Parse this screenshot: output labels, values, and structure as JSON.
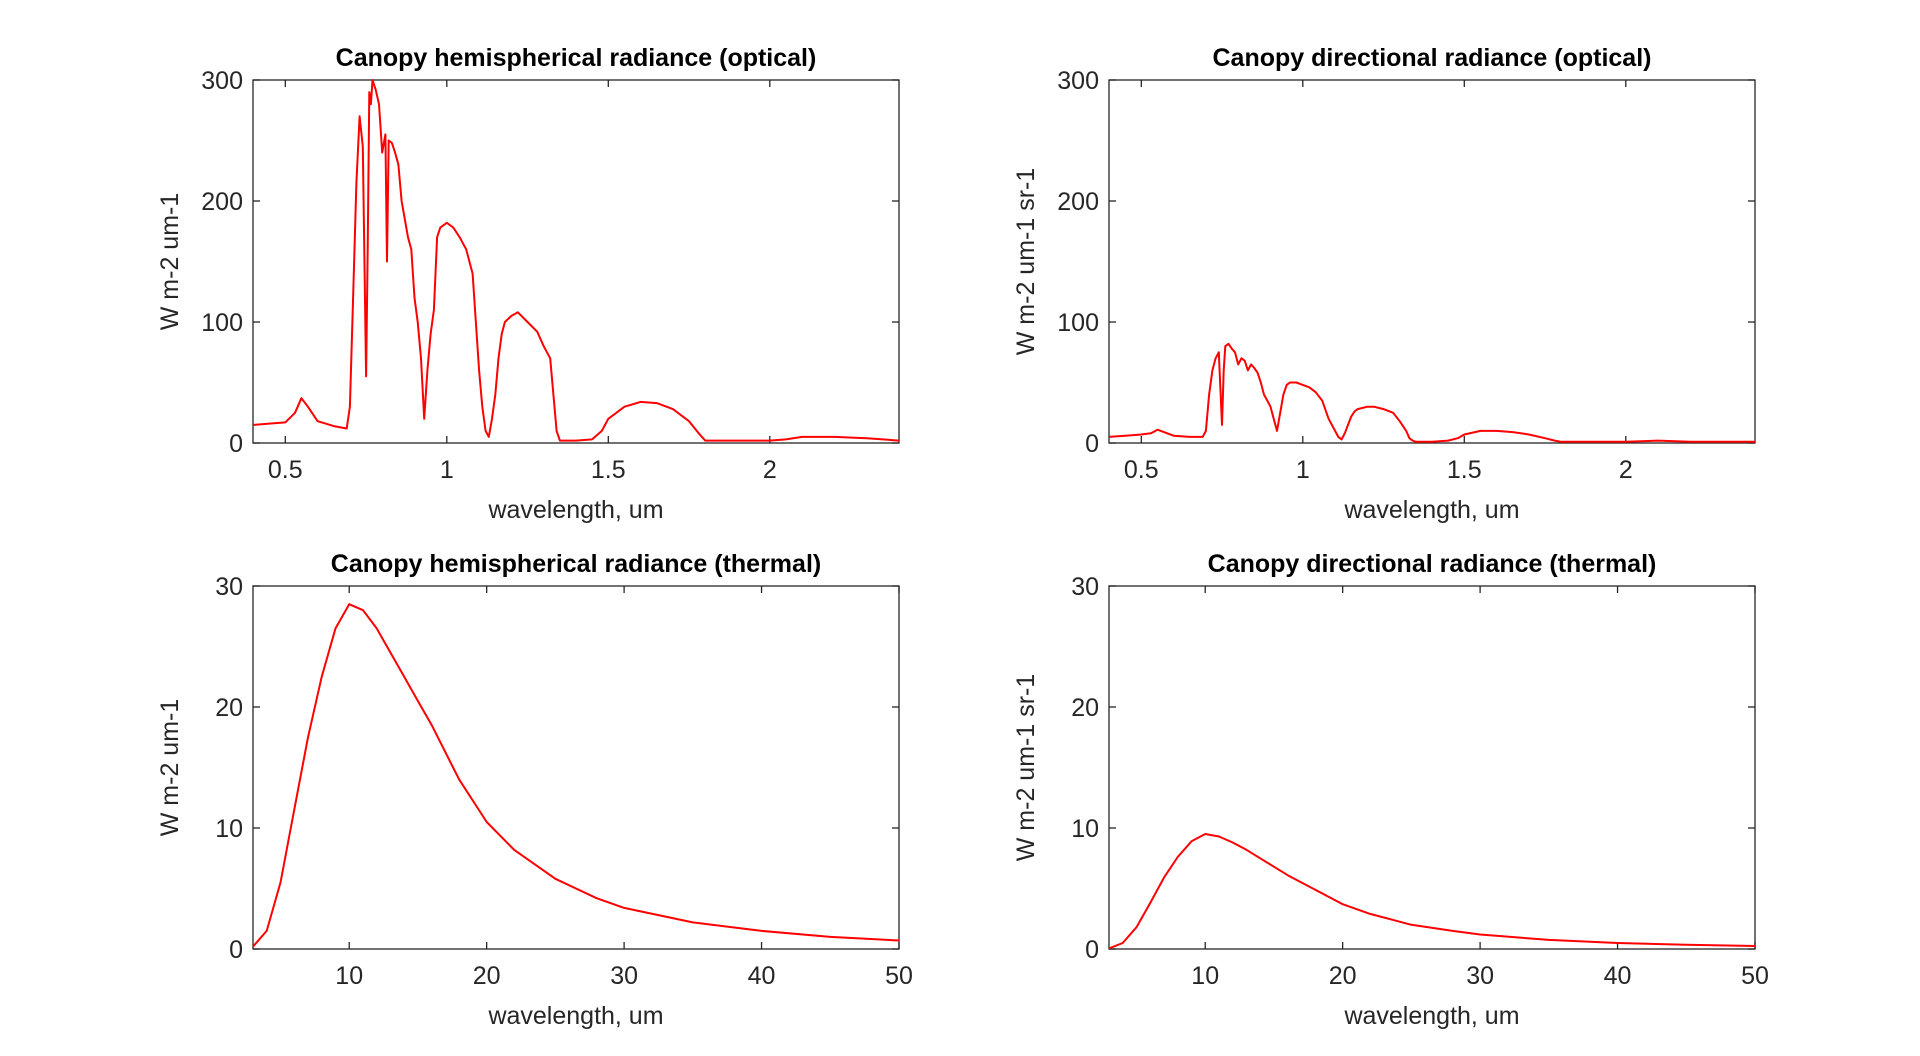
{
  "chart_data": [
    {
      "type": "line",
      "title": "Canopy hemispherical radiance (optical)",
      "xlabel": "wavelength, um",
      "ylabel": "W m-2 um-1",
      "xlim": [
        0.4,
        2.4
      ],
      "ylim": [
        0,
        300
      ],
      "xticks": [
        0.5,
        1,
        1.5,
        2
      ],
      "xtick_labels": [
        "0.5",
        "1",
        "1.5",
        "2"
      ],
      "yticks": [
        0,
        100,
        200,
        300
      ],
      "ytick_labels": [
        "0",
        "100",
        "200",
        "300"
      ],
      "grid": false,
      "color": "#ff0000",
      "series": [
        {
          "x": [
            0.4,
            0.45,
            0.5,
            0.53,
            0.55,
            0.57,
            0.6,
            0.65,
            0.69,
            0.7,
            0.71,
            0.72,
            0.73,
            0.74,
            0.75,
            0.755,
            0.76,
            0.765,
            0.77,
            0.775,
            0.78,
            0.79,
            0.8,
            0.81,
            0.815,
            0.82,
            0.83,
            0.84,
            0.85,
            0.86,
            0.87,
            0.88,
            0.89,
            0.9,
            0.91,
            0.92,
            0.93,
            0.94,
            0.95,
            0.96,
            0.97,
            0.98,
            1.0,
            1.02,
            1.04,
            1.06,
            1.08,
            1.1,
            1.11,
            1.12,
            1.13,
            1.14,
            1.15,
            1.16,
            1.17,
            1.18,
            1.2,
            1.22,
            1.25,
            1.28,
            1.3,
            1.32,
            1.33,
            1.34,
            1.35,
            1.4,
            1.45,
            1.48,
            1.5,
            1.55,
            1.6,
            1.65,
            1.7,
            1.75,
            1.78,
            1.8,
            1.9,
            2.0,
            2.05,
            2.1,
            2.2,
            2.3,
            2.35,
            2.4
          ],
          "y": [
            15,
            16,
            17,
            25,
            37,
            30,
            18,
            14,
            12,
            30,
            120,
            215,
            270,
            245,
            55,
            160,
            290,
            280,
            300,
            296,
            292,
            280,
            240,
            255,
            150,
            250,
            248,
            240,
            230,
            200,
            185,
            170,
            160,
            120,
            100,
            70,
            20,
            60,
            90,
            110,
            170,
            178,
            182,
            178,
            170,
            160,
            140,
            60,
            30,
            10,
            5,
            20,
            40,
            70,
            90,
            100,
            105,
            108,
            100,
            92,
            80,
            70,
            40,
            10,
            2,
            2,
            3,
            10,
            20,
            30,
            34,
            33,
            28,
            18,
            8,
            2,
            2,
            2,
            3,
            5,
            5,
            4,
            3,
            2
          ]
        }
      ]
    },
    {
      "type": "line",
      "title": "Canopy directional radiance (optical)",
      "xlabel": "wavelength, um",
      "ylabel": "W m-2 um-1 sr-1",
      "xlim": [
        0.4,
        2.4
      ],
      "ylim": [
        0,
        300
      ],
      "xticks": [
        0.5,
        1,
        1.5,
        2
      ],
      "xtick_labels": [
        "0.5",
        "1",
        "1.5",
        "2"
      ],
      "yticks": [
        0,
        100,
        200,
        300
      ],
      "ytick_labels": [
        "0",
        "100",
        "200",
        "300"
      ],
      "grid": false,
      "color": "#ff0000",
      "series": [
        {
          "x": [
            0.4,
            0.45,
            0.5,
            0.53,
            0.55,
            0.57,
            0.6,
            0.65,
            0.69,
            0.7,
            0.71,
            0.72,
            0.73,
            0.74,
            0.75,
            0.755,
            0.76,
            0.77,
            0.78,
            0.79,
            0.8,
            0.81,
            0.82,
            0.83,
            0.84,
            0.85,
            0.86,
            0.87,
            0.88,
            0.89,
            0.9,
            0.91,
            0.92,
            0.93,
            0.94,
            0.95,
            0.96,
            0.97,
            0.98,
            1.0,
            1.02,
            1.04,
            1.06,
            1.08,
            1.1,
            1.11,
            1.12,
            1.13,
            1.14,
            1.15,
            1.16,
            1.17,
            1.2,
            1.22,
            1.25,
            1.28,
            1.3,
            1.32,
            1.33,
            1.34,
            1.35,
            1.4,
            1.45,
            1.48,
            1.5,
            1.55,
            1.6,
            1.65,
            1.7,
            1.75,
            1.78,
            1.8,
            1.9,
            2.0,
            2.1,
            2.2,
            2.3,
            2.4
          ],
          "y": [
            5,
            6,
            7,
            8,
            11,
            9,
            6,
            5,
            5,
            10,
            40,
            60,
            70,
            75,
            15,
            60,
            80,
            82,
            78,
            75,
            65,
            70,
            68,
            60,
            65,
            62,
            58,
            50,
            40,
            35,
            30,
            20,
            10,
            25,
            40,
            48,
            50,
            50,
            50,
            48,
            46,
            42,
            35,
            20,
            10,
            5,
            3,
            8,
            15,
            22,
            26,
            28,
            30,
            30,
            28,
            25,
            18,
            10,
            4,
            2,
            1,
            1,
            2,
            4,
            7,
            10,
            10,
            9,
            7,
            4,
            2,
            1,
            1,
            1,
            2,
            1,
            1,
            1
          ]
        }
      ]
    },
    {
      "type": "line",
      "title": "Canopy hemispherical radiance (thermal)",
      "xlabel": "wavelength, um",
      "ylabel": "W m-2 um-1",
      "xlim": [
        3,
        50
      ],
      "ylim": [
        0,
        30
      ],
      "xticks": [
        10,
        20,
        30,
        40,
        50
      ],
      "xtick_labels": [
        "10",
        "20",
        "30",
        "40",
        "50"
      ],
      "yticks": [
        0,
        10,
        20,
        30
      ],
      "ytick_labels": [
        "0",
        "10",
        "20",
        "30"
      ],
      "grid": false,
      "color": "#ff0000",
      "series": [
        {
          "x": [
            3,
            4,
            5,
            6,
            7,
            8,
            9,
            10,
            11,
            12,
            13,
            14,
            15,
            16,
            18,
            20,
            22,
            25,
            28,
            30,
            35,
            40,
            45,
            50
          ],
          "y": [
            0.2,
            1.5,
            5.5,
            11.5,
            17.5,
            22.5,
            26.5,
            28.5,
            28.0,
            26.5,
            24.5,
            22.5,
            20.5,
            18.5,
            14.0,
            10.5,
            8.2,
            5.8,
            4.2,
            3.4,
            2.2,
            1.5,
            1.0,
            0.7
          ]
        }
      ]
    },
    {
      "type": "line",
      "title": "Canopy directional radiance (thermal)",
      "xlabel": "wavelength, um",
      "ylabel": "W m-2 um-1 sr-1",
      "xlim": [
        3,
        50
      ],
      "ylim": [
        0,
        30
      ],
      "xticks": [
        10,
        20,
        30,
        40,
        50
      ],
      "xtick_labels": [
        "10",
        "20",
        "30",
        "40",
        "50"
      ],
      "yticks": [
        0,
        10,
        20,
        30
      ],
      "ytick_labels": [
        "0",
        "10",
        "20",
        "30"
      ],
      "grid": false,
      "color": "#ff0000",
      "series": [
        {
          "x": [
            3,
            4,
            5,
            6,
            7,
            8,
            9,
            10,
            11,
            12,
            13,
            14,
            15,
            16,
            18,
            20,
            22,
            25,
            28,
            30,
            35,
            40,
            45,
            50
          ],
          "y": [
            0.05,
            0.5,
            1.8,
            3.8,
            5.9,
            7.6,
            8.9,
            9.5,
            9.3,
            8.8,
            8.2,
            7.5,
            6.8,
            6.1,
            4.9,
            3.7,
            2.9,
            2.0,
            1.5,
            1.2,
            0.75,
            0.5,
            0.35,
            0.25
          ]
        }
      ]
    }
  ]
}
